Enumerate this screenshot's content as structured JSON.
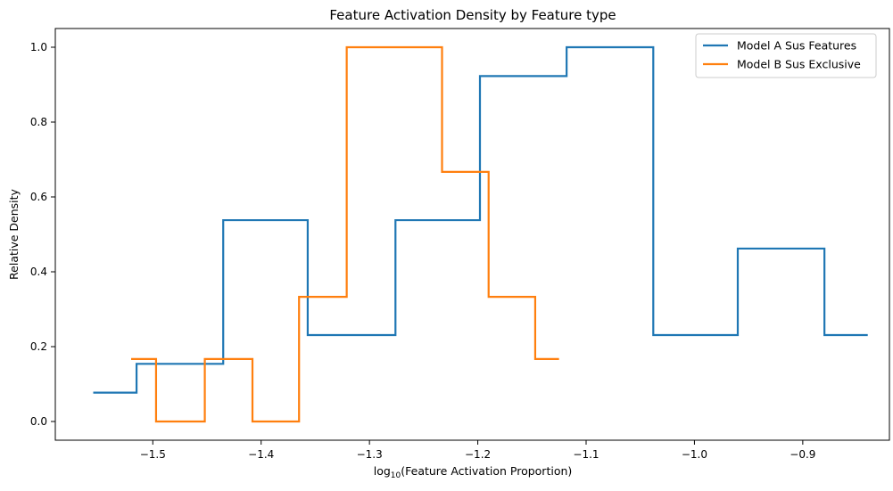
{
  "chart_data": {
    "type": "line",
    "drawstyle": "steps-post",
    "title": "Feature Activation Density by Feature type",
    "xlabel_prefix": "log",
    "xlabel_sub": "10",
    "xlabel_rest": "(Feature Activation Proportion)",
    "ylabel": "Relative Density",
    "xlim": [
      -1.59,
      -0.82
    ],
    "ylim": [
      -0.05,
      1.05
    ],
    "xticks": [
      -1.5,
      -1.4,
      -1.3,
      -1.2,
      -1.1,
      -1.0,
      -0.9
    ],
    "xtick_labels": [
      "−1.5",
      "−1.4",
      "−1.3",
      "−1.2",
      "−1.1",
      "−1.0",
      "−0.9"
    ],
    "yticks": [
      0.0,
      0.2,
      0.4,
      0.6,
      0.8,
      1.0
    ],
    "ytick_labels": [
      "0.0",
      "0.2",
      "0.4",
      "0.6",
      "0.8",
      "1.0"
    ],
    "legend_position": "top-right",
    "series": [
      {
        "name": "Model A Sus Features",
        "color": "#1f77b4",
        "x": [
          -1.555,
          -1.515,
          -1.435,
          -1.357,
          -1.276,
          -1.198,
          -1.118,
          -1.038,
          -0.96,
          -0.88,
          -0.84
        ],
        "y": [
          0.077,
          0.154,
          0.538,
          0.231,
          0.538,
          0.923,
          1.0,
          0.231,
          0.462,
          0.231,
          0.231
        ]
      },
      {
        "name": "Model B Sus Exclusive",
        "color": "#ff7f0e",
        "x": [
          -1.52,
          -1.497,
          -1.452,
          -1.408,
          -1.365,
          -1.321,
          -1.233,
          -1.19,
          -1.147,
          -1.125
        ],
        "y": [
          0.167,
          0.0,
          0.167,
          0.0,
          0.333,
          1.0,
          0.667,
          0.333,
          0.167,
          0.167
        ]
      }
    ]
  }
}
